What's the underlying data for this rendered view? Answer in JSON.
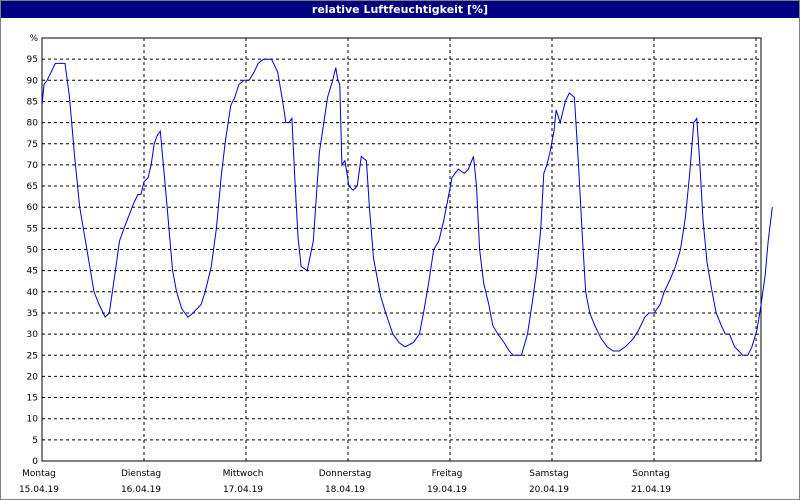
{
  "window": {
    "title": "relative Luftfeuchtigkeit [%]"
  },
  "chart_data": {
    "type": "line",
    "title": "relative Luftfeuchtigkeit [%]",
    "ylabel": "%",
    "ylim": [
      0,
      100
    ],
    "yticks": [
      0,
      5,
      10,
      15,
      20,
      25,
      30,
      35,
      40,
      45,
      50,
      55,
      60,
      65,
      70,
      75,
      80,
      85,
      90,
      95
    ],
    "grid": true,
    "xlim_days": [
      0,
      7.05
    ],
    "x_categories": [
      {
        "day": "Montag",
        "date": "15.04.19"
      },
      {
        "day": "Dienstag",
        "date": "16.04.19"
      },
      {
        "day": "Mittwoch",
        "date": "17.04.19"
      },
      {
        "day": "Donnerstag",
        "date": "18.04.19"
      },
      {
        "day": "Freitag",
        "date": "19.04.19"
      },
      {
        "day": "Samstag",
        "date": "20.04.19"
      },
      {
        "day": "Sonntag",
        "date": "21.04.19"
      }
    ],
    "series": [
      {
        "color": "#0000cc",
        "points": [
          [
            0.0,
            84
          ],
          [
            0.02,
            89
          ],
          [
            0.05,
            90
          ],
          [
            0.09,
            92
          ],
          [
            0.13,
            94
          ],
          [
            0.2,
            94
          ],
          [
            0.225,
            94
          ],
          [
            0.27,
            86
          ],
          [
            0.32,
            72
          ],
          [
            0.37,
            60
          ],
          [
            0.44,
            50
          ],
          [
            0.51,
            40
          ],
          [
            0.56,
            37
          ],
          [
            0.62,
            34
          ],
          [
            0.66,
            35
          ],
          [
            0.72,
            45
          ],
          [
            0.76,
            52
          ],
          [
            0.82,
            56
          ],
          [
            0.9,
            61
          ],
          [
            0.94,
            63
          ],
          [
            0.97,
            63
          ],
          [
            1.0,
            66
          ],
          [
            1.04,
            67
          ],
          [
            1.07,
            70
          ],
          [
            1.1,
            75
          ],
          [
            1.13,
            77
          ],
          [
            1.16,
            78
          ],
          [
            1.22,
            62
          ],
          [
            1.28,
            45
          ],
          [
            1.32,
            40
          ],
          [
            1.37,
            36
          ],
          [
            1.43,
            34
          ],
          [
            1.48,
            35
          ],
          [
            1.56,
            37
          ],
          [
            1.6,
            40
          ],
          [
            1.66,
            46
          ],
          [
            1.71,
            55
          ],
          [
            1.76,
            68
          ],
          [
            1.8,
            76
          ],
          [
            1.85,
            84
          ],
          [
            1.89,
            86
          ],
          [
            1.93,
            89
          ],
          [
            1.98,
            90
          ],
          [
            2.03,
            90
          ],
          [
            2.08,
            92
          ],
          [
            2.12,
            94
          ],
          [
            2.17,
            95
          ],
          [
            2.25,
            95
          ],
          [
            2.31,
            92
          ],
          [
            2.36,
            85
          ],
          [
            2.39,
            80
          ],
          [
            2.42,
            80
          ],
          [
            2.45,
            81
          ],
          [
            2.48,
            66
          ],
          [
            2.51,
            53
          ],
          [
            2.54,
            46
          ],
          [
            2.6,
            45
          ],
          [
            2.66,
            52
          ],
          [
            2.72,
            73
          ],
          [
            2.8,
            86
          ],
          [
            2.85,
            90
          ],
          [
            2.88,
            93
          ],
          [
            2.9,
            90
          ],
          [
            2.92,
            89
          ],
          [
            2.94,
            70
          ],
          [
            2.97,
            71
          ],
          [
            3.01,
            65
          ],
          [
            3.05,
            64
          ],
          [
            3.09,
            65
          ],
          [
            3.13,
            72
          ],
          [
            3.18,
            71
          ],
          [
            3.21,
            60
          ],
          [
            3.25,
            48
          ],
          [
            3.32,
            39
          ],
          [
            3.37,
            35
          ],
          [
            3.44,
            30
          ],
          [
            3.5,
            28
          ],
          [
            3.56,
            27
          ],
          [
            3.64,
            28
          ],
          [
            3.7,
            30
          ],
          [
            3.74,
            35
          ],
          [
            3.79,
            42
          ],
          [
            3.84,
            50
          ],
          [
            3.89,
            52
          ],
          [
            3.94,
            57
          ],
          [
            4.02,
            67
          ],
          [
            4.08,
            69
          ],
          [
            4.14,
            68
          ],
          [
            4.18,
            69
          ],
          [
            4.23,
            72
          ],
          [
            4.26,
            65
          ],
          [
            4.29,
            50
          ],
          [
            4.33,
            42
          ],
          [
            4.38,
            37
          ],
          [
            4.42,
            32
          ],
          [
            4.47,
            30
          ],
          [
            4.53,
            28
          ],
          [
            4.58,
            26
          ],
          [
            4.62,
            25
          ],
          [
            4.7,
            25
          ],
          [
            4.76,
            30
          ],
          [
            4.81,
            38
          ],
          [
            4.85,
            45
          ],
          [
            4.89,
            55
          ],
          [
            4.92,
            68
          ],
          [
            4.95,
            70
          ],
          [
            4.98,
            73
          ],
          [
            5.02,
            78
          ],
          [
            5.04,
            83
          ],
          [
            5.08,
            80
          ],
          [
            5.13,
            85
          ],
          [
            5.17,
            87
          ],
          [
            5.22,
            86
          ],
          [
            5.26,
            70
          ],
          [
            5.3,
            52
          ],
          [
            5.33,
            40
          ],
          [
            5.37,
            35
          ],
          [
            5.42,
            32
          ],
          [
            5.48,
            29
          ],
          [
            5.54,
            27
          ],
          [
            5.6,
            26
          ],
          [
            5.66,
            26
          ],
          [
            5.72,
            27
          ],
          [
            5.8,
            29
          ],
          [
            5.85,
            31
          ],
          [
            5.91,
            34
          ],
          [
            5.95,
            35
          ],
          [
            6.0,
            35
          ],
          [
            6.06,
            37
          ],
          [
            6.1,
            40
          ],
          [
            6.16,
            43
          ],
          [
            6.21,
            46
          ],
          [
            6.26,
            50
          ],
          [
            6.31,
            58
          ],
          [
            6.35,
            68
          ],
          [
            6.39,
            80
          ],
          [
            6.42,
            81
          ],
          [
            6.45,
            70
          ],
          [
            6.48,
            57
          ],
          [
            6.52,
            47
          ],
          [
            6.57,
            40
          ],
          [
            6.61,
            35
          ],
          [
            6.66,
            32
          ],
          [
            6.7,
            30
          ],
          [
            6.74,
            30
          ],
          [
            6.79,
            27
          ],
          [
            6.83,
            26
          ],
          [
            6.87,
            25
          ],
          [
            6.92,
            25
          ],
          [
            6.96,
            27
          ],
          [
            7.01,
            31
          ],
          [
            7.05,
            37
          ],
          [
            7.09,
            44
          ],
          [
            7.12,
            52
          ],
          [
            7.15,
            58
          ],
          [
            7.16,
            60
          ]
        ]
      }
    ]
  }
}
